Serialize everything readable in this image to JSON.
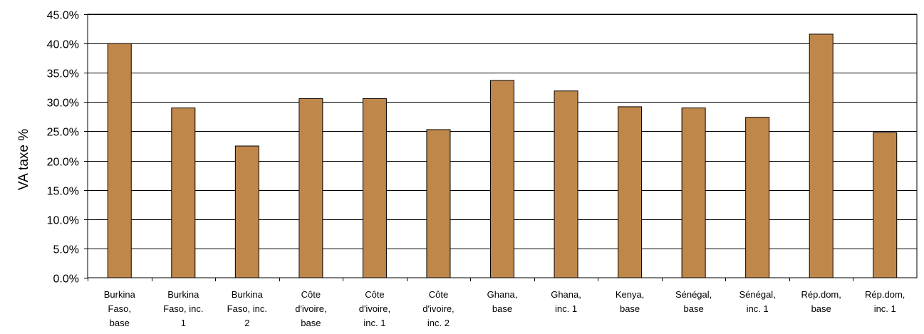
{
  "chart_data": {
    "type": "bar",
    "title": "",
    "xlabel": "",
    "ylabel": "VA taxe %",
    "ylim": [
      0,
      45
    ],
    "ytick_step": 5,
    "ytick_labels": [
      "0.0%",
      "5.0%",
      "10.0%",
      "15.0%",
      "20.0%",
      "25.0%",
      "30.0%",
      "35.0%",
      "40.0%",
      "45.0%"
    ],
    "grid": true,
    "legend": "none",
    "bar_color": "#c0874b",
    "categories": [
      [
        "Burkina",
        "Faso,",
        "base"
      ],
      [
        "Burkina",
        "Faso, inc.",
        "1"
      ],
      [
        "Burkina",
        "Faso, inc.",
        "2"
      ],
      [
        "Côte",
        "d'ivoire,",
        "base"
      ],
      [
        "Côte",
        "d'ivoire,",
        "inc. 1"
      ],
      [
        "Côte",
        "d'ivoire,",
        "inc. 2"
      ],
      [
        "Ghana,",
        "base"
      ],
      [
        "Ghana,",
        "inc. 1"
      ],
      [
        "Kenya,",
        "base"
      ],
      [
        "Sénégal,",
        "base"
      ],
      [
        "Sénégal,",
        "inc. 1"
      ],
      [
        "Rép.dom,",
        "base"
      ],
      [
        "Rép.dom,",
        "inc. 1"
      ]
    ],
    "values": [
      40.0,
      29.0,
      22.5,
      30.6,
      30.6,
      25.3,
      33.7,
      31.9,
      29.2,
      29.0,
      27.4,
      41.6,
      24.8
    ]
  }
}
